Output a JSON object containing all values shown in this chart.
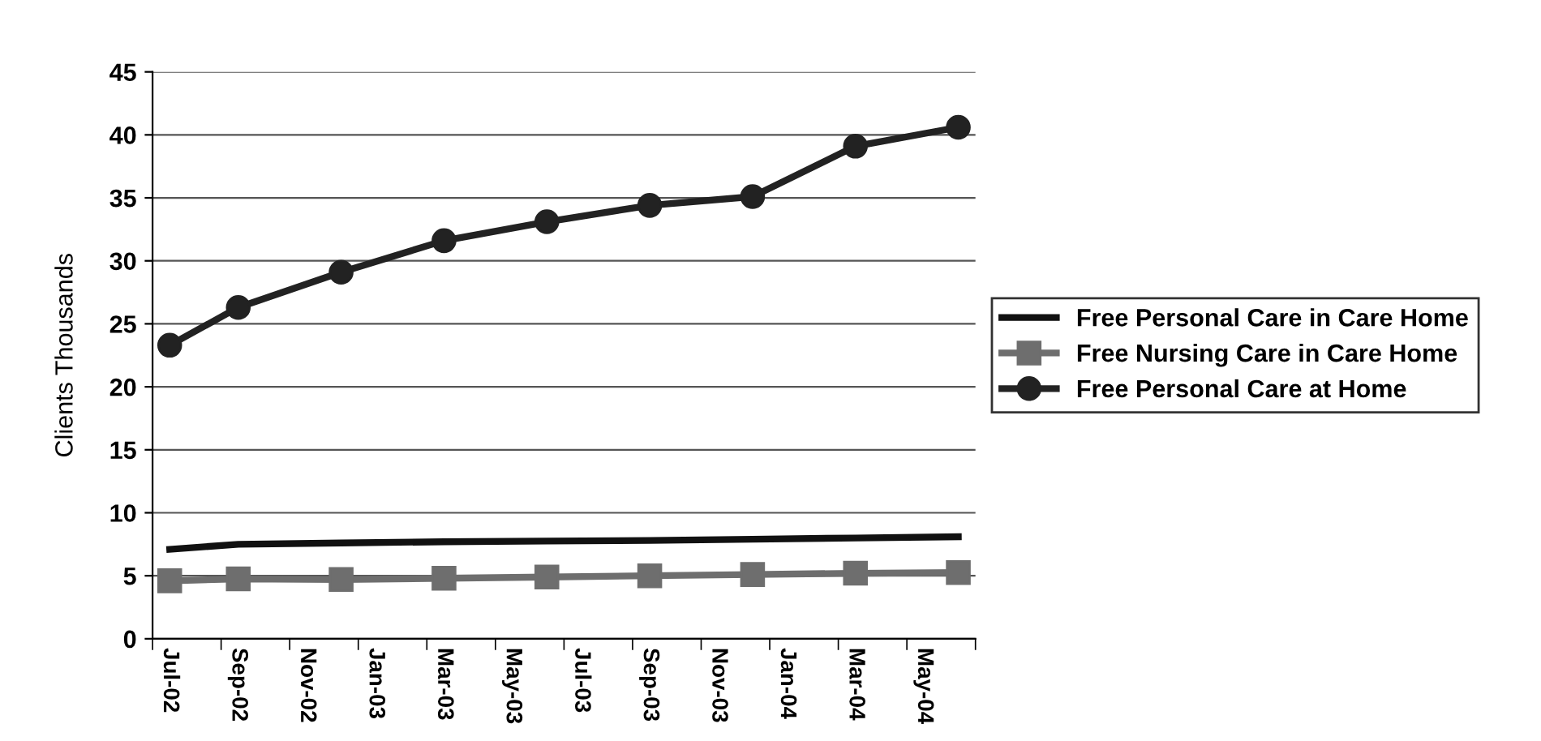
{
  "chart_data": {
    "type": "line",
    "ylabel": "Clients Thousands",
    "categories": [
      "Jul-02",
      null,
      "Sep-02",
      null,
      "Nov-02",
      null,
      "Jan-03",
      null,
      "Mar-03",
      null,
      "May-03",
      null,
      "Jul-03",
      null,
      "Sep-03",
      null,
      "Nov-03",
      null,
      "Jan-04",
      null,
      "Mar-04",
      null,
      "May-04",
      null
    ],
    "series": [
      {
        "name": "Free Personal Care in Care Home",
        "color": "#111111",
        "marker": "none",
        "values": [
          7.1,
          null,
          7.5,
          null,
          null,
          7.6,
          null,
          null,
          7.7,
          null,
          null,
          7.75,
          null,
          null,
          7.8,
          null,
          null,
          7.9,
          null,
          null,
          8.0,
          null,
          null,
          8.1
        ]
      },
      {
        "name": "Free Nursing Care in Care Home",
        "color": "#6e6e6e",
        "marker": "square",
        "values": [
          4.6,
          null,
          4.75,
          null,
          null,
          4.7,
          null,
          null,
          4.8,
          null,
          null,
          4.9,
          null,
          null,
          5.0,
          null,
          null,
          5.1,
          null,
          null,
          5.2,
          null,
          null,
          5.25
        ]
      },
      {
        "name": "Free Personal Care at Home",
        "color": "#222222",
        "marker": "circle",
        "values": [
          23.3,
          null,
          26.3,
          null,
          null,
          29.1,
          null,
          null,
          31.6,
          null,
          null,
          33.1,
          null,
          null,
          34.4,
          null,
          null,
          35.1,
          null,
          null,
          39.1,
          null,
          null,
          40.6
        ]
      }
    ],
    "ylim": [
      0,
      45
    ],
    "yticks": [
      0,
      5,
      10,
      15,
      20,
      25,
      30,
      35,
      40,
      45
    ],
    "grid": "y",
    "legend": "right",
    "line_style": "solid"
  }
}
